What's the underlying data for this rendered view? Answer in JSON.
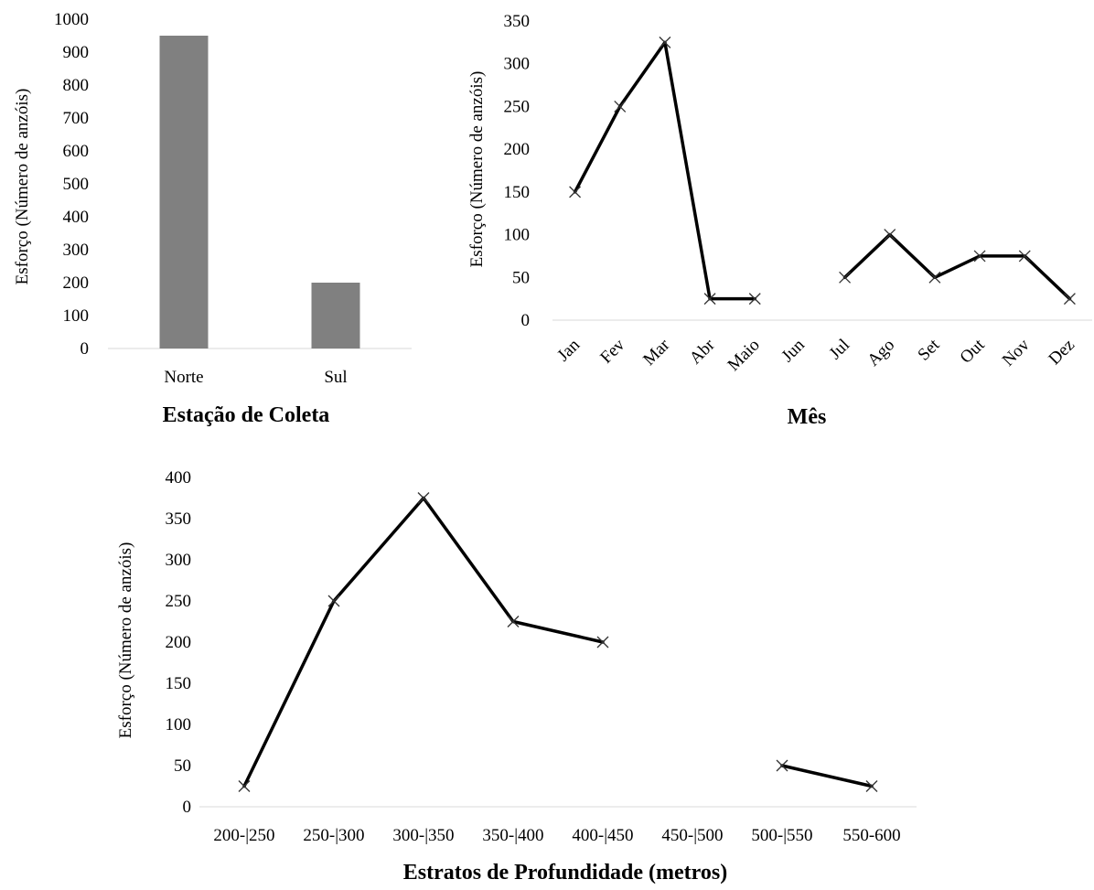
{
  "chart_data": [
    {
      "id": "estacao",
      "type": "bar",
      "categories": [
        "Norte",
        "Sul"
      ],
      "values": [
        950,
        200
      ],
      "xlabel": "Estação de Coleta",
      "ylabel": "Esforço  (Número  de  anzóis)",
      "ylim": [
        0,
        1000
      ],
      "yticks": [
        "0",
        "100",
        "200",
        "300",
        "400",
        "500",
        "600",
        "700",
        "800",
        "900",
        "1000"
      ],
      "grid": false,
      "colors": {
        "bar": "#808080"
      }
    },
    {
      "id": "mes",
      "type": "line",
      "categories": [
        "Jan",
        "Fev",
        "Mar",
        "Abr",
        "Maio",
        "Jun",
        "Jul",
        "Ago",
        "Set",
        "Out",
        "Nov",
        "Dez"
      ],
      "values": [
        150,
        250,
        325,
        25,
        25,
        null,
        50,
        100,
        50,
        75,
        75,
        25
      ],
      "xlabel": "Mês",
      "ylabel": "Esforço  (Número  de  anzóis)",
      "ylim": [
        0,
        350
      ],
      "yticks": [
        "0",
        "50",
        "100",
        "150",
        "200",
        "250",
        "300",
        "350"
      ],
      "marker": "x",
      "grid": false,
      "colors": {
        "line": "#000000"
      }
    },
    {
      "id": "profundidade",
      "type": "line",
      "categories": [
        "200-|250",
        "250-|300",
        "300-|350",
        "350-|400",
        "400-|450",
        "450-|500",
        "500-|550",
        "550-600"
      ],
      "values": [
        25,
        250,
        375,
        225,
        200,
        null,
        50,
        25
      ],
      "xlabel": "Estratos de Profundidade  (metros)",
      "ylabel": "Esforço  (Número  de  anzóis)",
      "ylim": [
        0,
        400
      ],
      "yticks": [
        "0",
        "50",
        "100",
        "150",
        "200",
        "250",
        "300",
        "350",
        "400"
      ],
      "marker": "x",
      "grid": false,
      "colors": {
        "line": "#000000"
      }
    }
  ]
}
